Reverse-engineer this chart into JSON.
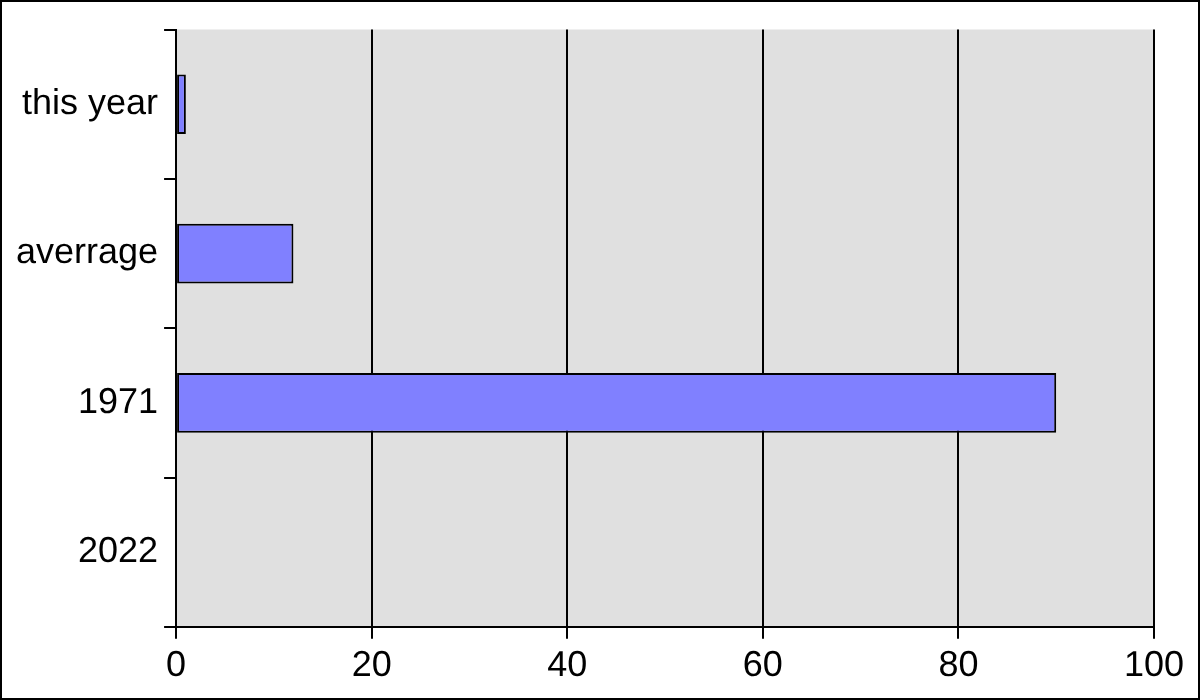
{
  "chart_data": {
    "type": "bar",
    "orientation": "horizontal",
    "categories": [
      "this year",
      "averrage",
      "1971",
      "2022"
    ],
    "values": [
      1,
      12,
      90,
      0
    ],
    "color": "#8080ff",
    "xlim": [
      0,
      100
    ],
    "xticks": [
      0,
      20,
      40,
      60,
      80,
      100
    ],
    "grid": "x"
  }
}
